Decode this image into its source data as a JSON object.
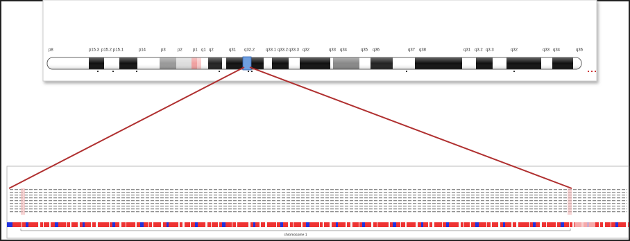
{
  "ideogram": {
    "band_labels": [
      "p8",
      "p15.3",
      "p15.2",
      "p15.1",
      "p14",
      "p3",
      "p2",
      "p1",
      "q1",
      "q2",
      "q31",
      "q32.2",
      "q33.1",
      "q33.2",
      "q33.3",
      "q32",
      "q33",
      "q34",
      "q35",
      "q36",
      "q37",
      "q38",
      "q31",
      "q3.2",
      "q3.3",
      "q32",
      "q33",
      "q34",
      "q36"
    ]
  },
  "detail": {
    "axis_label": "chromosome 1"
  }
}
